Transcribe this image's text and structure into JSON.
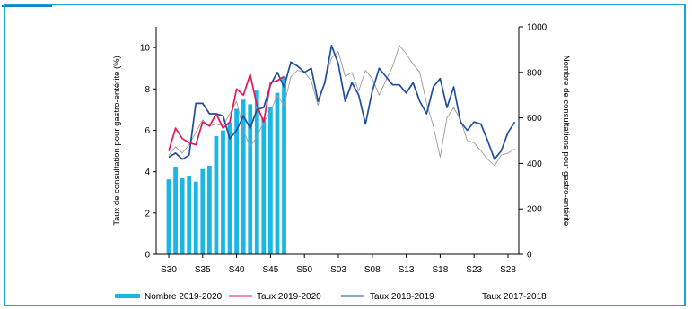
{
  "chart_data": {
    "type": "bar+line",
    "y_left_label": "Taux de consultation pour gastro-entérite (%)",
    "y_right_label": "Nombre de consultations pour gastro-entérite",
    "y_left_ticks": [
      "0",
      "2",
      "4",
      "6",
      "8",
      "10"
    ],
    "y_right_ticks": [
      "0",
      "200",
      "400",
      "600",
      "800",
      "1000"
    ],
    "ylim_left": [
      0,
      11
    ],
    "ylim_right": [
      0,
      1000
    ],
    "x_ticks": [
      "S30",
      "S35",
      "S40",
      "S45",
      "S50",
      "S03",
      "S08",
      "S13",
      "S18",
      "S23",
      "S28"
    ],
    "x_categories": [
      "S30",
      "S31",
      "S32",
      "S33",
      "S34",
      "S35",
      "S36",
      "S37",
      "S38",
      "S39",
      "S40",
      "S41",
      "S42",
      "S43",
      "S44",
      "S45",
      "S46",
      "S47",
      "S48",
      "S49",
      "S50",
      "S51",
      "S52",
      "S01",
      "S02",
      "S03",
      "S04",
      "S05",
      "S06",
      "S07",
      "S08",
      "S09",
      "S10",
      "S11",
      "S12",
      "S13",
      "S14",
      "S15",
      "S16",
      "S17",
      "S18",
      "S19",
      "S20",
      "S21",
      "S22",
      "S23",
      "S24",
      "S25",
      "S26",
      "S27",
      "S28",
      "S29"
    ],
    "bars": {
      "name": "Nombre 2019-2020",
      "color": "#1ab7e6",
      "axis": "right",
      "values": [
        330,
        385,
        335,
        345,
        320,
        375,
        390,
        520,
        545,
        580,
        640,
        680,
        660,
        720,
        600,
        650,
        710,
        780
      ]
    },
    "series": [
      {
        "name": "Taux 2019-2020",
        "color": "#e0185a",
        "axis": "left",
        "values": [
          5.0,
          6.1,
          5.6,
          5.4,
          5.3,
          6.4,
          6.2,
          6.8,
          6.1,
          6.4,
          8.0,
          7.7,
          8.7,
          7.2,
          6.4,
          8.3,
          8.4,
          8.6
        ]
      },
      {
        "name": "Taux 2018-2019",
        "color": "#1f4e9c",
        "axis": "left",
        "values": [
          4.7,
          4.9,
          4.6,
          4.8,
          7.3,
          7.3,
          6.8,
          6.8,
          6.7,
          5.6,
          6.0,
          6.7,
          6.1,
          7.0,
          7.1,
          8.2,
          8.8,
          8.1,
          9.3,
          9.1,
          8.8,
          9.0,
          7.4,
          8.3,
          10.1,
          9.2,
          7.4,
          8.3,
          7.7,
          6.3,
          7.9,
          9.0,
          8.6,
          8.2,
          8.2,
          7.8,
          8.3,
          7.4,
          6.8,
          8.1,
          8.5,
          7.1,
          8.1,
          6.4,
          6.0,
          6.4,
          6.3,
          5.5,
          4.6,
          5.0,
          5.9,
          6.4
        ]
      },
      {
        "name": "Taux 2017-2018",
        "color": "#9a9a9a",
        "axis": "left",
        "values": [
          4.8,
          5.2,
          4.9,
          5.3,
          5.9,
          6.5,
          6.2,
          6.3,
          6.2,
          6.8,
          7.4,
          6.0,
          5.2,
          5.7,
          6.4,
          6.9,
          7.7,
          7.2,
          8.6,
          8.9,
          8.8,
          8.4,
          7.2,
          8.4,
          9.5,
          9.8,
          8.6,
          8.8,
          7.9,
          8.9,
          8.5,
          7.7,
          8.4,
          9.1,
          10.1,
          9.7,
          9.2,
          8.8,
          7.3,
          6.2,
          4.7,
          6.6,
          7.1,
          6.5,
          5.5,
          5.4,
          5.0,
          4.6,
          4.3,
          4.8,
          4.9,
          5.1
        ]
      }
    ],
    "legend_position": "bottom",
    "grid": false
  }
}
